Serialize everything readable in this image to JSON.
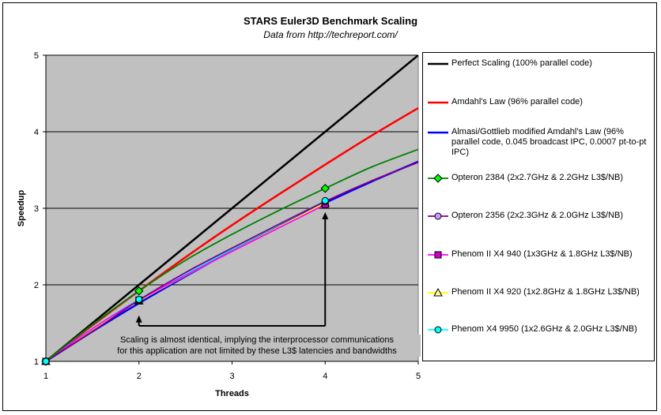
{
  "chart_data": {
    "type": "line",
    "title": "STARS Euler3D Benchmark Scaling",
    "subtitle": "Data from http://techreport.com/",
    "xlabel": "Threads",
    "ylabel": "Speedup",
    "xlim": [
      1,
      5
    ],
    "ylim": [
      1,
      5
    ],
    "x_ticks": [
      "1",
      "2",
      "3",
      "4",
      "5"
    ],
    "y_ticks": [
      "1",
      "2",
      "3",
      "4",
      "5"
    ],
    "plot_background": "#c0c0c0",
    "grid": "horizontal",
    "legend_position": "right",
    "models": [
      {
        "name": "Perfect Scaling (100% parallel code)",
        "color": "#000000",
        "marker": "none",
        "x": [
          1,
          2,
          3,
          4,
          5
        ],
        "y": [
          1,
          2,
          3,
          4,
          5
        ]
      },
      {
        "name": "Amdahl's Law (96% parallel code)",
        "color": "#ff0000",
        "marker": "none",
        "x": [
          1,
          1.5,
          2,
          2.5,
          3,
          3.5,
          4,
          4.5,
          5
        ],
        "y": [
          1,
          1.47,
          1.92,
          2.36,
          2.78,
          3.18,
          3.57,
          3.95,
          4.31
        ]
      },
      {
        "name": "Almasi/Gottlieb modified Amdahl's Law (96% parallel code, 0.045 broadcast IPC, 0.0007 pt-to-pt IPC)",
        "color": "#0000ff",
        "marker": "none",
        "x": [
          1,
          1.5,
          2,
          2.5,
          3,
          3.5,
          4,
          4.5,
          5
        ],
        "y": [
          1,
          1.39,
          1.76,
          2.11,
          2.45,
          2.77,
          3.07,
          3.35,
          3.61
        ]
      }
    ],
    "series": [
      {
        "name": "Opteron 2384 (2x2.7GHz & 2.2GHz L3$/NB)",
        "color": "#008000",
        "marker_color": "#00ff00",
        "marker": "diamond",
        "x": [
          1,
          2,
          4
        ],
        "y": [
          1,
          1.92,
          3.26
        ],
        "curve": [
          [
            1,
            1
          ],
          [
            1.5,
            1.48
          ],
          [
            2,
            1.92
          ],
          [
            2.5,
            2.32
          ],
          [
            3,
            2.66
          ],
          [
            3.5,
            2.97
          ],
          [
            4,
            3.26
          ],
          [
            4.5,
            3.54
          ],
          [
            5,
            3.77
          ]
        ]
      },
      {
        "name": "Opteron 2356 (2x2.3GHz & 2.0GHz L3$/NB)",
        "color": "#800080",
        "marker_color": "#cc99ff",
        "marker": "circle",
        "x": [
          1,
          2,
          4
        ],
        "y": [
          1,
          1.8,
          3.09
        ],
        "curve": [
          [
            1,
            1
          ],
          [
            1.5,
            1.39
          ],
          [
            2,
            1.8
          ],
          [
            2.5,
            2.16
          ],
          [
            3,
            2.48
          ],
          [
            3.5,
            2.79
          ],
          [
            4,
            3.09
          ],
          [
            4.5,
            3.36
          ],
          [
            5,
            3.6
          ]
        ]
      },
      {
        "name": "Phenom II X4 940 (1x3GHz & 1.8GHz L3$/NB)",
        "color": "#ff00ff",
        "marker_color": "#cc00cc",
        "marker": "square",
        "x": [
          1,
          2,
          4
        ],
        "y": [
          1,
          1.8,
          3.05
        ]
      },
      {
        "name": "Phenom II X4 920 (1x2.8GHz & 1.8GHz L3$/NB)",
        "color": "#ffff00",
        "marker_color": "#ffff99",
        "marker": "triangle",
        "x": [
          1,
          2,
          4
        ],
        "y": [
          1,
          1.79,
          3.07
        ]
      },
      {
        "name": "Phenom X4 9950 (1x2.6GHz & 2.0GHz L3$/NB)",
        "color": "#00ffff",
        "marker_color": "#00ffff",
        "marker": "circle",
        "x": [
          1,
          2,
          4
        ],
        "y": [
          1,
          1.81,
          3.1
        ]
      }
    ],
    "annotation": {
      "lines": [
        "Scaling is almost identical, implying the interprocessor communications",
        "for this application are not limited by these L3$ latencies and bandwidths"
      ],
      "arrow_targets": [
        [
          2,
          1.6
        ],
        [
          4,
          2.95
        ]
      ]
    }
  },
  "legend": {
    "items": [
      {
        "label": "Perfect Scaling (100% parallel code)"
      },
      {
        "label": "Amdahl's Law (96% parallel code)"
      },
      {
        "label": "Almasi/Gottlieb modified Amdahl's Law (96% parallel code, 0.045 broadcast IPC, 0.0007 pt-to-pt IPC)"
      },
      {
        "label": "Opteron 2384 (2x2.7GHz & 2.2GHz L3$/NB)"
      },
      {
        "label": "Opteron 2356 (2x2.3GHz & 2.0GHz L3$/NB)"
      },
      {
        "label": "Phenom II X4 940 (1x3GHz & 1.8GHz L3$/NB)"
      },
      {
        "label": "Phenom II X4 920 (1x2.8GHz & 1.8GHz L3$/NB)"
      },
      {
        "label": "Phenom X4 9950 (1x2.6GHz & 2.0GHz L3$/NB)"
      }
    ]
  }
}
